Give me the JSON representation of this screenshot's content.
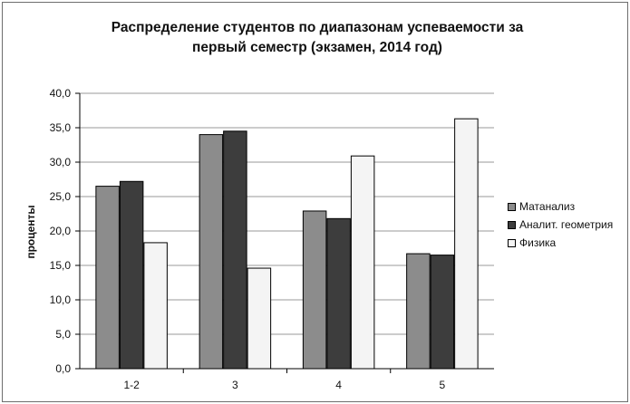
{
  "chart_data": {
    "type": "bar",
    "title_lines": [
      "Распределение студентов по диапазонам успеваемости за",
      "первый семестр (экзамен, 2014 год)"
    ],
    "xlabel": "",
    "ylabel": "проценты",
    "categories": [
      "1-2",
      "3",
      "4",
      "5"
    ],
    "ylim": [
      0,
      40
    ],
    "ytick_labels": [
      "0,0",
      "5,0",
      "10,0",
      "15,0",
      "20,0",
      "25,0",
      "30,0",
      "35,0",
      "40,0"
    ],
    "grid": true,
    "legend_position": "right",
    "series": [
      {
        "name": "Матанализ",
        "color": "#8c8c8c",
        "values": [
          26.5,
          34.0,
          22.9,
          16.7
        ]
      },
      {
        "name": "Аналит. геометрия",
        "color": "#3d3d3d",
        "values": [
          27.2,
          34.5,
          21.8,
          16.5
        ]
      },
      {
        "name": "Физика",
        "color": "#f4f4f4",
        "values": [
          18.3,
          14.6,
          30.9,
          36.3
        ]
      }
    ]
  }
}
